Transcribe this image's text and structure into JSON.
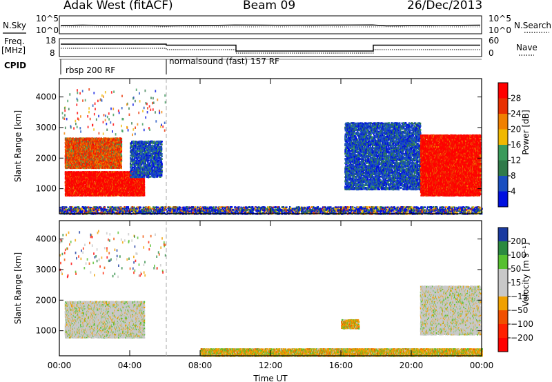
{
  "header": {
    "station": "Adak West (fitACF)",
    "beam": "Beam 09",
    "date": "26/Dec/2013"
  },
  "colors": {
    "power_scale": [
      "#0010e0",
      "#1a4fc0",
      "#2f7a4a",
      "#3a9a5a",
      "#f0b800",
      "#f08000",
      "#e83000",
      "#ff0000"
    ],
    "velocity_scale": [
      "#ff0000",
      "#ff2000",
      "#f05000",
      "#f0a000",
      "#c8c8c8",
      "#c8c8c8",
      "#56c030",
      "#2b8a40",
      "#1a3aa0"
    ]
  },
  "top_panels": {
    "nsky": {
      "left_label": "N.Sky",
      "left_ticks": [
        "10^5",
        "10^0"
      ],
      "right_label": "N.Search",
      "right_ticks": [
        "10^5",
        "10^0"
      ]
    },
    "freq": {
      "left_label_1": "Freq.",
      "left_label_2": "[MHz]",
      "left_ticks": [
        "18",
        "8"
      ],
      "right_label": "Nave",
      "right_ticks": [
        "60",
        "0"
      ]
    },
    "cpid": {
      "label": "CPID",
      "segments": [
        "rbsp 200 RF",
        "normalsound (fast) 157 RF"
      ]
    }
  },
  "chart_data": [
    {
      "type": "heatmap",
      "panel": "power",
      "xlabel": "Time UT",
      "ylabel": "Slant Range [km]",
      "xlim": [
        0,
        24
      ],
      "ylim": [
        180,
        4600
      ],
      "y_ticks": [
        "1000",
        "2000",
        "3000",
        "4000"
      ],
      "x_ticks": [
        "00:00",
        "04:00",
        "08:00",
        "12:00",
        "16:00",
        "20:00",
        "00:00"
      ],
      "colorbar": {
        "label": "Power [dB]",
        "ticks": [
          "4",
          "8",
          "12",
          "16",
          "20",
          "24",
          "28"
        ]
      },
      "regions": [
        {
          "t": [
            0.3,
            4.8
          ],
          "r": [
            800,
            1600
          ],
          "level": "strong"
        },
        {
          "t": [
            0.3,
            3.5
          ],
          "r": [
            1700,
            2700
          ],
          "level": "moderate"
        },
        {
          "t": [
            4.0,
            5.8
          ],
          "r": [
            1400,
            2600
          ],
          "level": "weak"
        },
        {
          "t": [
            16.2,
            20.5
          ],
          "r": [
            1000,
            3200
          ],
          "level": "weak"
        },
        {
          "t": [
            20.5,
            23.9
          ],
          "r": [
            800,
            2800
          ],
          "level": "strong"
        },
        {
          "t": [
            0,
            24
          ],
          "r": [
            200,
            450
          ],
          "level": "ground"
        }
      ]
    },
    {
      "type": "heatmap",
      "panel": "velocity",
      "xlabel": "Time UT",
      "ylabel": "Slant Range [km]",
      "xlim": [
        0,
        24
      ],
      "ylim": [
        180,
        4600
      ],
      "y_ticks": [
        "1000",
        "2000",
        "3000",
        "4000"
      ],
      "x_ticks": [
        "00:00",
        "04:00",
        "08:00",
        "12:00",
        "16:00",
        "20:00",
        "00:00"
      ],
      "colorbar": {
        "label": "Velocity [m s⁻¹]",
        "ticks": [
          "200",
          "100",
          "50",
          "15",
          "−15",
          "−50",
          "−100",
          "−200"
        ]
      },
      "regions": [
        {
          "t": [
            0.3,
            4.8
          ],
          "r": [
            800,
            2000
          ],
          "level": "low"
        },
        {
          "t": [
            16.0,
            17.0
          ],
          "r": [
            1100,
            1400
          ],
          "level": "negative"
        },
        {
          "t": [
            20.5,
            23.9
          ],
          "r": [
            900,
            2500
          ],
          "level": "low"
        },
        {
          "t": [
            8,
            24
          ],
          "r": [
            200,
            450
          ],
          "level": "negative"
        }
      ]
    }
  ],
  "xaxis": {
    "label": "Time UT"
  }
}
